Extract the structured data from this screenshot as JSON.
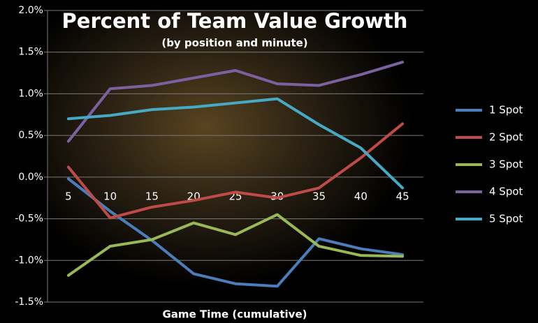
{
  "chart_data": {
    "type": "line",
    "title": "Percent of Team Value Growth",
    "subtitle": "(by position and minute)",
    "x_label": "Game Time (cumulative)",
    "categories": [
      "5",
      "10",
      "15",
      "20",
      "25",
      "30",
      "35",
      "40",
      "45"
    ],
    "ylim": [
      -1.5,
      2.0
    ],
    "yticks": [
      {
        "value": -1.5,
        "label": "-1.5%"
      },
      {
        "value": -1.0,
        "label": "-1.0%"
      },
      {
        "value": -0.5,
        "label": "-0.5%"
      },
      {
        "value": 0.0,
        "label": "0.0%"
      },
      {
        "value": 0.5,
        "label": "0.5%"
      },
      {
        "value": 1.0,
        "label": "1.0%"
      },
      {
        "value": 1.5,
        "label": "1.5%"
      },
      {
        "value": 2.0,
        "label": "2.0%"
      }
    ],
    "grid": true,
    "legend": "right",
    "series": [
      {
        "name": "1 Spot",
        "color": "#4a7ebb",
        "values": [
          -0.02,
          -0.41,
          -0.76,
          -1.16,
          -1.28,
          -1.31,
          -0.74,
          -0.86,
          -0.93
        ]
      },
      {
        "name": "2 Spot",
        "color": "#be4b48",
        "values": [
          0.12,
          -0.49,
          -0.36,
          -0.28,
          -0.18,
          -0.25,
          -0.13,
          0.23,
          0.64
        ]
      },
      {
        "name": "3 Spot",
        "color": "#98b954",
        "values": [
          -1.18,
          -0.83,
          -0.75,
          -0.55,
          -0.69,
          -0.45,
          -0.83,
          -0.94,
          -0.95
        ]
      },
      {
        "name": "4 Spot",
        "color": "#7d60a0",
        "values": [
          0.43,
          1.06,
          1.1,
          1.19,
          1.28,
          1.12,
          1.1,
          1.23,
          1.38
        ]
      },
      {
        "name": "5 Spot",
        "color": "#46aac5",
        "values": [
          0.7,
          0.74,
          0.81,
          0.84,
          0.89,
          0.94,
          0.63,
          0.35,
          -0.13
        ]
      }
    ]
  }
}
